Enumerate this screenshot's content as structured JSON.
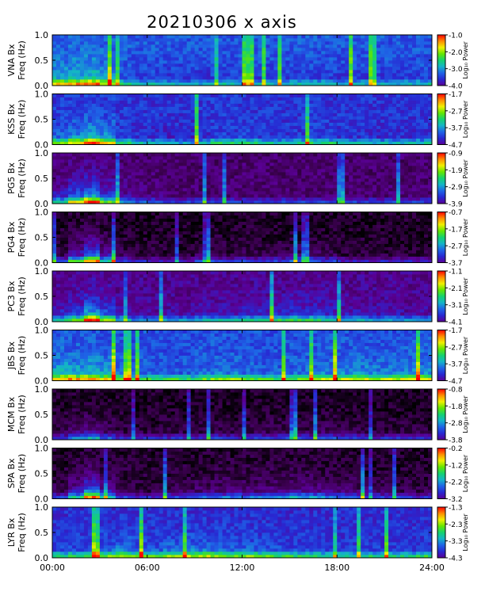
{
  "title": "20210306 x axis",
  "side_note": "",
  "chart_data": {
    "type": "heatmap",
    "title": "20210306 x axis",
    "x_range": [
      0,
      24
    ],
    "x_ticks": [
      "00:00",
      "06:00",
      "12:00",
      "18:00",
      "24:00"
    ],
    "y_range": [
      0,
      1.0
    ],
    "y_ticks": [
      "0.0",
      "0.5",
      "1.0"
    ],
    "colorbar_label": "Log₁₀ Power",
    "colorscale": [
      "#000000",
      "#3c0050",
      "#5a0096",
      "#2828d2",
      "#1e64e6",
      "#14b4c8",
      "#14d26e",
      "#64e600",
      "#f0f000",
      "#ff8c00",
      "#ff0000"
    ],
    "panels": [
      {
        "station": "VNA",
        "ylabel1": "VNA Bx",
        "ylabel2": "Freq (Hz)",
        "cbar_ticks": [
          "-1.0",
          "-2.0",
          "-3.0",
          "-4.0"
        ],
        "cbar_range": [
          -4.0,
          -1.0
        ],
        "background": 0.38,
        "activity": [
          0.55,
          0.6,
          0.65,
          0.5,
          0.35,
          0.3,
          0.3,
          0.28,
          0.25,
          0.25,
          0.3,
          0.3,
          0.3,
          0.28,
          0.28,
          0.3,
          0.3,
          0.3,
          0.28,
          0.28,
          0.28,
          0.28,
          0.28,
          0.3
        ]
      },
      {
        "station": "KSS",
        "ylabel1": "KSS Bx",
        "ylabel2": "Freq (Hz)",
        "cbar_ticks": [
          "-1.7",
          "-2.7",
          "-3.7",
          "-4.7"
        ],
        "cbar_range": [
          -4.7,
          -1.7
        ],
        "background": 0.32,
        "activity": [
          0.45,
          0.55,
          0.65,
          0.55,
          0.35,
          0.3,
          0.28,
          0.25,
          0.25,
          0.28,
          0.35,
          0.35,
          0.35,
          0.32,
          0.3,
          0.32,
          0.35,
          0.35,
          0.3,
          0.3,
          0.28,
          0.28,
          0.28,
          0.3
        ]
      },
      {
        "station": "PG5",
        "ylabel1": "PG5 Bx",
        "ylabel2": "Freq (Hz)",
        "cbar_ticks": [
          "-0.9",
          "-1.9",
          "-2.9",
          "-3.9"
        ],
        "cbar_range": [
          -3.9,
          -0.9
        ],
        "background": 0.14,
        "activity": [
          0.35,
          0.55,
          0.7,
          0.45,
          0.25,
          0.2,
          0.18,
          0.15,
          0.15,
          0.15,
          0.15,
          0.15,
          0.15,
          0.15,
          0.15,
          0.15,
          0.15,
          0.15,
          0.15,
          0.15,
          0.15,
          0.15,
          0.15,
          0.15
        ]
      },
      {
        "station": "PG4",
        "ylabel1": "PG4 Bx",
        "ylabel2": "Freq (Hz)",
        "cbar_ticks": [
          "-0.7",
          "-1.7",
          "-2.7",
          "-3.7"
        ],
        "cbar_range": [
          -3.7,
          -0.7
        ],
        "background": 0.04,
        "activity": [
          0.15,
          0.4,
          0.65,
          0.35,
          0.15,
          0.1,
          0.1,
          0.1,
          0.1,
          0.15,
          0.15,
          0.12,
          0.15,
          0.12,
          0.15,
          0.2,
          0.2,
          0.15,
          0.1,
          0.1,
          0.1,
          0.1,
          0.1,
          0.1
        ]
      },
      {
        "station": "PC3",
        "ylabel1": "PC3 Bx",
        "ylabel2": "Freq (Hz)",
        "cbar_ticks": [
          "-1.1",
          "-2.1",
          "-3.1",
          "-4.1"
        ],
        "cbar_range": [
          -4.1,
          -1.1
        ],
        "background": 0.18,
        "activity": [
          0.35,
          0.45,
          0.7,
          0.5,
          0.3,
          0.25,
          0.25,
          0.25,
          0.25,
          0.3,
          0.3,
          0.3,
          0.35,
          0.35,
          0.38,
          0.4,
          0.38,
          0.35,
          0.3,
          0.3,
          0.28,
          0.28,
          0.25,
          0.25
        ]
      },
      {
        "station": "JBS",
        "ylabel1": "JBS Bx",
        "ylabel2": "Freq (Hz)",
        "cbar_ticks": [
          "-1.7",
          "-2.7",
          "-3.7",
          "-4.7"
        ],
        "cbar_range": [
          -4.7,
          -1.7
        ],
        "background": 0.36,
        "activity": [
          0.6,
          0.6,
          0.62,
          0.55,
          0.45,
          0.4,
          0.38,
          0.38,
          0.38,
          0.42,
          0.45,
          0.45,
          0.42,
          0.4,
          0.4,
          0.42,
          0.45,
          0.48,
          0.5,
          0.5,
          0.48,
          0.48,
          0.5,
          0.52
        ]
      },
      {
        "station": "MCM",
        "ylabel1": "MCM Bx",
        "ylabel2": "Freq (Hz)",
        "cbar_ticks": [
          "-0.8",
          "-1.8",
          "-2.8",
          "-3.8"
        ],
        "cbar_range": [
          -3.8,
          -0.8
        ],
        "background": 0.04,
        "activity": [
          0.15,
          0.25,
          0.3,
          0.2,
          0.12,
          0.12,
          0.12,
          0.12,
          0.12,
          0.12,
          0.15,
          0.12,
          0.15,
          0.15,
          0.15,
          0.15,
          0.15,
          0.18,
          0.15,
          0.15,
          0.12,
          0.12,
          0.12,
          0.12
        ]
      },
      {
        "station": "SPA",
        "ylabel1": "SPA Bx",
        "ylabel2": "Freq (Hz)",
        "cbar_ticks": [
          "-0.2",
          "-1.2",
          "-2.2",
          "-3.2"
        ],
        "cbar_range": [
          -3.2,
          -0.2
        ],
        "background": 0.05,
        "activity": [
          0.15,
          0.35,
          0.65,
          0.35,
          0.15,
          0.12,
          0.12,
          0.15,
          0.15,
          0.2,
          0.22,
          0.22,
          0.22,
          0.25,
          0.25,
          0.28,
          0.28,
          0.25,
          0.2,
          0.18,
          0.15,
          0.15,
          0.12,
          0.12
        ]
      },
      {
        "station": "LYR",
        "ylabel1": "LYR Bx",
        "ylabel2": "Freq (Hz)",
        "cbar_ticks": [
          "-1.3",
          "-2.3",
          "-3.3",
          "-4.3"
        ],
        "cbar_range": [
          -4.3,
          -1.3
        ],
        "background": 0.3,
        "activity": [
          0.38,
          0.4,
          0.42,
          0.45,
          0.5,
          0.45,
          0.42,
          0.48,
          0.5,
          0.5,
          0.48,
          0.45,
          0.45,
          0.42,
          0.4,
          0.38,
          0.38,
          0.35,
          0.35,
          0.35,
          0.35,
          0.35,
          0.35,
          0.38
        ]
      }
    ]
  }
}
